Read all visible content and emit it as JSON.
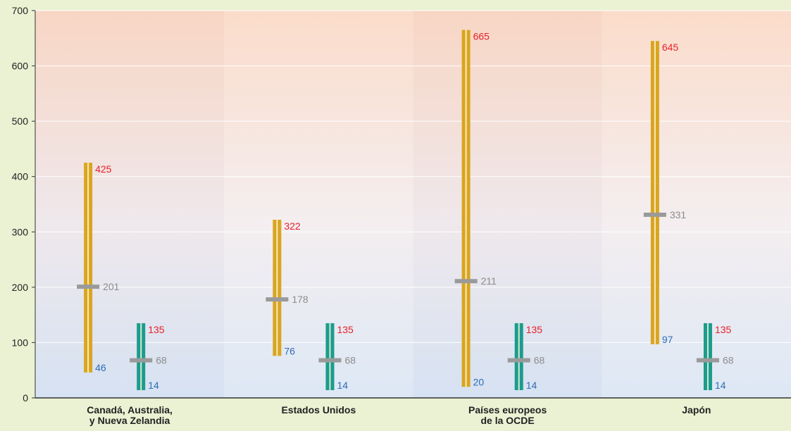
{
  "chart_data": {
    "type": "range",
    "ylim": [
      0,
      700
    ],
    "yticks": [
      0,
      100,
      200,
      300,
      400,
      500,
      600,
      700
    ],
    "grid": true,
    "categories": [
      [
        "Canadá, Australia,",
        "y Nueva Zelandia"
      ],
      [
        "Estados Unidos"
      ],
      [
        "Países europeos",
        "de la OCDE"
      ],
      [
        "Japón"
      ]
    ],
    "series": [
      {
        "color": "#d9a520",
        "values": [
          {
            "min": 46,
            "mid": 201,
            "max": 425
          },
          {
            "min": 76,
            "mid": 178,
            "max": 322
          },
          {
            "min": 20,
            "mid": 211,
            "max": 665
          },
          {
            "min": 97,
            "mid": 331,
            "max": 645
          }
        ]
      },
      {
        "color": "#1a9c8e",
        "values": [
          {
            "min": 14,
            "mid": 68,
            "max": 135
          },
          {
            "min": 14,
            "mid": 68,
            "max": 135
          },
          {
            "min": 14,
            "mid": 68,
            "max": 135
          },
          {
            "min": 14,
            "mid": 68,
            "max": 135
          }
        ]
      }
    ],
    "colors": {
      "max_label": "#e8202a",
      "mid_label": "#8c8c8c",
      "min_label": "#2f6bb5",
      "mid_marker": "#9a9a9a",
      "background": "#eaf2d3"
    }
  }
}
